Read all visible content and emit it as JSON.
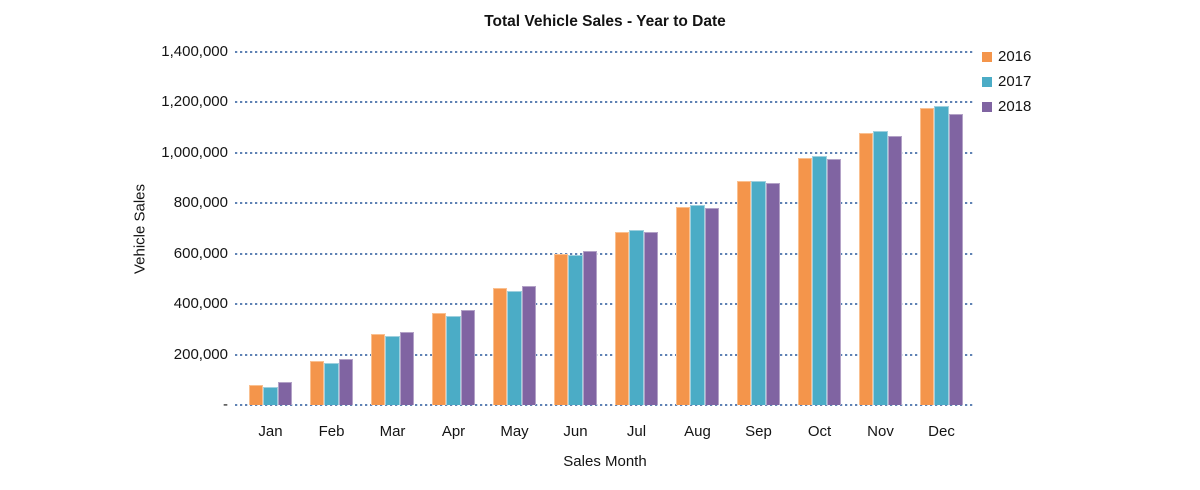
{
  "title": "Total Vehicle Sales - Year to Date",
  "axes": {
    "y_title": "Vehicle Sales",
    "x_title": "Sales Month",
    "y_zero_label": "-"
  },
  "colors": {
    "series_2016": "#F4954B",
    "series_2017": "#4BACC6",
    "series_2018": "#8064A2",
    "border_2016": "#FAC090",
    "border_2017": "#9FD0DE",
    "border_2018": "#B3A2C7",
    "gridline": "#5F82B4",
    "text": "#141414"
  },
  "chart_data": {
    "type": "bar",
    "title": "Total Vehicle Sales - Year to Date",
    "xlabel": "Sales Month",
    "ylabel": "Vehicle Sales",
    "categories": [
      "Jan",
      "Feb",
      "Mar",
      "Apr",
      "May",
      "Jun",
      "Jul",
      "Aug",
      "Sep",
      "Oct",
      "Nov",
      "Dec"
    ],
    "series": [
      {
        "name": "2016",
        "color": "#F4954B",
        "border": "#FAC090",
        "values": [
          78000,
          176000,
          281000,
          365000,
          464000,
          599000,
          685000,
          784000,
          887000,
          978000,
          1077000,
          1177000
        ]
      },
      {
        "name": "2017",
        "color": "#4BACC6",
        "border": "#9FD0DE",
        "values": [
          70000,
          166000,
          272000,
          354000,
          453000,
          593000,
          693000,
          793000,
          890000,
          986000,
          1087000,
          1185000
        ]
      },
      {
        "name": "2018",
        "color": "#8064A2",
        "border": "#B3A2C7",
        "values": [
          90000,
          182000,
          288000,
          375000,
          473000,
          609000,
          688000,
          781000,
          882000,
          975000,
          1067000,
          1153000
        ]
      }
    ],
    "ylim": [
      0,
      1400000
    ],
    "ytick_step": 200000,
    "ytick_labels": [
      "-",
      "200,000",
      "400,000",
      "600,000",
      "800,000",
      "1,000,000",
      "1,200,000",
      "1,400,000"
    ],
    "grid": "horizontal-dotted",
    "legend_position": "top-right",
    "legend_entries": [
      "2016",
      "2017",
      "2018"
    ]
  }
}
